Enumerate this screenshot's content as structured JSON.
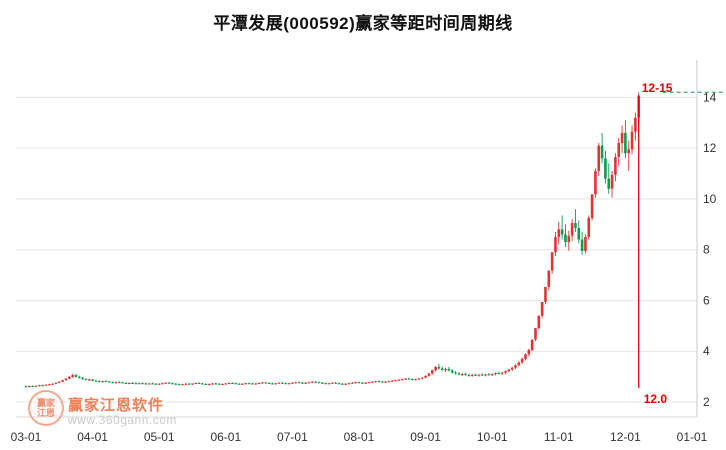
{
  "watermark": {
    "seal_top": "赢家",
    "seal_bottom": "江恩",
    "brand": "赢家江恩软件",
    "url": "www.360gann.com"
  },
  "chart_data": {
    "type": "candlestick",
    "title": "平潭发展(000592)赢家等距时间周期线",
    "xlabel": "",
    "ylabel": "",
    "grid": true,
    "legend": "none",
    "ylim": [
      2,
      15
    ],
    "y_ticks": [
      2,
      4,
      6,
      8,
      10,
      12,
      14
    ],
    "slots": 201,
    "x_ticks": [
      {
        "label": "03-01",
        "slot": 0
      },
      {
        "label": "04-01",
        "slot": 20
      },
      {
        "label": "05-01",
        "slot": 40
      },
      {
        "label": "06-01",
        "slot": 60
      },
      {
        "label": "07-01",
        "slot": 80
      },
      {
        "label": "08-01",
        "slot": 100
      },
      {
        "label": "09-01",
        "slot": 120
      },
      {
        "label": "10-01",
        "slot": 140
      },
      {
        "label": "11-01",
        "slot": 160
      },
      {
        "label": "12-01",
        "slot": 180
      },
      {
        "label": "01-01",
        "slot": 200
      }
    ],
    "up_color": "#e23333",
    "down_color": "#0a9b4e",
    "grid_color": "#e6e6e6",
    "axis_text_color": "#333333",
    "cycle_line": {
      "slot": 184,
      "date_label": "12-15",
      "price_label": "12.0",
      "color": "#e60000",
      "level_price": 14.2,
      "level_color": "#0a9b4e"
    },
    "candles": [
      [
        2.62,
        2.65,
        2.58,
        2.6
      ],
      [
        2.6,
        2.64,
        2.57,
        2.63
      ],
      [
        2.63,
        2.66,
        2.6,
        2.61
      ],
      [
        2.61,
        2.65,
        2.59,
        2.64
      ],
      [
        2.64,
        2.68,
        2.62,
        2.66
      ],
      [
        2.66,
        2.69,
        2.63,
        2.65
      ],
      [
        2.65,
        2.7,
        2.64,
        2.68
      ],
      [
        2.68,
        2.72,
        2.65,
        2.7
      ],
      [
        2.7,
        2.74,
        2.67,
        2.72
      ],
      [
        2.72,
        2.78,
        2.7,
        2.76
      ],
      [
        2.76,
        2.82,
        2.74,
        2.8
      ],
      [
        2.8,
        2.88,
        2.78,
        2.86
      ],
      [
        2.86,
        2.95,
        2.84,
        2.92
      ],
      [
        2.92,
        3.02,
        2.9,
        2.99
      ],
      [
        2.99,
        3.1,
        2.95,
        3.06
      ],
      [
        3.06,
        3.12,
        2.96,
        2.99
      ],
      [
        2.99,
        3.04,
        2.92,
        2.95
      ],
      [
        2.95,
        2.99,
        2.88,
        2.9
      ],
      [
        2.9,
        2.94,
        2.85,
        2.87
      ],
      [
        2.87,
        2.92,
        2.83,
        2.89
      ],
      [
        2.89,
        2.91,
        2.82,
        2.84
      ],
      [
        2.84,
        2.88,
        2.8,
        2.82
      ],
      [
        2.82,
        2.85,
        2.78,
        2.8
      ],
      [
        2.8,
        2.84,
        2.77,
        2.82
      ],
      [
        2.82,
        2.86,
        2.79,
        2.81
      ],
      [
        2.81,
        2.83,
        2.76,
        2.78
      ],
      [
        2.78,
        2.81,
        2.74,
        2.76
      ],
      [
        2.76,
        2.8,
        2.73,
        2.78
      ],
      [
        2.78,
        2.82,
        2.75,
        2.77
      ],
      [
        2.77,
        2.8,
        2.73,
        2.75
      ],
      [
        2.75,
        2.78,
        2.71,
        2.73
      ],
      [
        2.73,
        2.77,
        2.7,
        2.75
      ],
      [
        2.75,
        2.79,
        2.72,
        2.74
      ],
      [
        2.74,
        2.77,
        2.7,
        2.72
      ],
      [
        2.72,
        2.76,
        2.69,
        2.74
      ],
      [
        2.74,
        2.78,
        2.71,
        2.73
      ],
      [
        2.73,
        2.76,
        2.69,
        2.71
      ],
      [
        2.71,
        2.75,
        2.68,
        2.73
      ],
      [
        2.73,
        2.77,
        2.7,
        2.72
      ],
      [
        2.72,
        2.75,
        2.68,
        2.7
      ],
      [
        2.7,
        2.74,
        2.67,
        2.72
      ],
      [
        2.72,
        2.76,
        2.69,
        2.74
      ],
      [
        2.74,
        2.78,
        2.71,
        2.76
      ],
      [
        2.76,
        2.79,
        2.72,
        2.74
      ],
      [
        2.74,
        2.77,
        2.7,
        2.72
      ],
      [
        2.72,
        2.75,
        2.68,
        2.7
      ],
      [
        2.7,
        2.73,
        2.66,
        2.68
      ],
      [
        2.68,
        2.72,
        2.65,
        2.7
      ],
      [
        2.7,
        2.74,
        2.67,
        2.72
      ],
      [
        2.72,
        2.75,
        2.68,
        2.7
      ],
      [
        2.7,
        2.74,
        2.67,
        2.73
      ],
      [
        2.73,
        2.77,
        2.7,
        2.75
      ],
      [
        2.75,
        2.78,
        2.71,
        2.73
      ],
      [
        2.73,
        2.76,
        2.69,
        2.71
      ],
      [
        2.71,
        2.74,
        2.67,
        2.69
      ],
      [
        2.69,
        2.73,
        2.66,
        2.71
      ],
      [
        2.71,
        2.75,
        2.68,
        2.73
      ],
      [
        2.73,
        2.76,
        2.7,
        2.72
      ],
      [
        2.72,
        2.75,
        2.68,
        2.7
      ],
      [
        2.7,
        2.73,
        2.67,
        2.71
      ],
      [
        2.71,
        2.75,
        2.68,
        2.73
      ],
      [
        2.73,
        2.77,
        2.7,
        2.75
      ],
      [
        2.75,
        2.78,
        2.72,
        2.74
      ],
      [
        2.74,
        2.77,
        2.7,
        2.72
      ],
      [
        2.72,
        2.75,
        2.68,
        2.7
      ],
      [
        2.7,
        2.74,
        2.67,
        2.72
      ],
      [
        2.72,
        2.76,
        2.69,
        2.74
      ],
      [
        2.74,
        2.77,
        2.71,
        2.73
      ],
      [
        2.73,
        2.76,
        2.69,
        2.71
      ],
      [
        2.71,
        2.75,
        2.68,
        2.73
      ],
      [
        2.73,
        2.77,
        2.7,
        2.75
      ],
      [
        2.75,
        2.79,
        2.72,
        2.77
      ],
      [
        2.77,
        2.8,
        2.73,
        2.75
      ],
      [
        2.75,
        2.78,
        2.71,
        2.73
      ],
      [
        2.73,
        2.76,
        2.7,
        2.72
      ],
      [
        2.72,
        2.75,
        2.68,
        2.74
      ],
      [
        2.74,
        2.78,
        2.71,
        2.76
      ],
      [
        2.76,
        2.79,
        2.72,
        2.74
      ],
      [
        2.74,
        2.77,
        2.7,
        2.72
      ],
      [
        2.72,
        2.76,
        2.69,
        2.74
      ],
      [
        2.74,
        2.78,
        2.71,
        2.76
      ],
      [
        2.76,
        2.8,
        2.73,
        2.78
      ],
      [
        2.78,
        2.81,
        2.74,
        2.76
      ],
      [
        2.76,
        2.79,
        2.72,
        2.74
      ],
      [
        2.74,
        2.78,
        2.71,
        2.76
      ],
      [
        2.76,
        2.8,
        2.73,
        2.78
      ],
      [
        2.78,
        2.82,
        2.75,
        2.8
      ],
      [
        2.8,
        2.83,
        2.76,
        2.78
      ],
      [
        2.78,
        2.81,
        2.74,
        2.76
      ],
      [
        2.76,
        2.79,
        2.72,
        2.74
      ],
      [
        2.74,
        2.77,
        2.7,
        2.72
      ],
      [
        2.72,
        2.76,
        2.69,
        2.74
      ],
      [
        2.74,
        2.78,
        2.71,
        2.76
      ],
      [
        2.76,
        2.79,
        2.72,
        2.74
      ],
      [
        2.74,
        2.77,
        2.7,
        2.72
      ],
      [
        2.72,
        2.75,
        2.68,
        2.7
      ],
      [
        2.7,
        2.74,
        2.67,
        2.72
      ],
      [
        2.72,
        2.76,
        2.69,
        2.74
      ],
      [
        2.74,
        2.78,
        2.71,
        2.76
      ],
      [
        2.76,
        2.8,
        2.73,
        2.78
      ],
      [
        2.78,
        2.81,
        2.74,
        2.76
      ],
      [
        2.76,
        2.79,
        2.72,
        2.74
      ],
      [
        2.74,
        2.78,
        2.71,
        2.76
      ],
      [
        2.76,
        2.8,
        2.73,
        2.78
      ],
      [
        2.78,
        2.82,
        2.75,
        2.8
      ],
      [
        2.8,
        2.84,
        2.77,
        2.82
      ],
      [
        2.82,
        2.85,
        2.78,
        2.8
      ],
      [
        2.8,
        2.83,
        2.76,
        2.78
      ],
      [
        2.78,
        2.82,
        2.75,
        2.8
      ],
      [
        2.8,
        2.84,
        2.77,
        2.82
      ],
      [
        2.82,
        2.86,
        2.79,
        2.84
      ],
      [
        2.84,
        2.88,
        2.81,
        2.86
      ],
      [
        2.86,
        2.9,
        2.83,
        2.88
      ],
      [
        2.88,
        2.92,
        2.85,
        2.9
      ],
      [
        2.9,
        2.94,
        2.87,
        2.92
      ],
      [
        2.92,
        2.96,
        2.88,
        2.9
      ],
      [
        2.9,
        2.93,
        2.86,
        2.88
      ],
      [
        2.88,
        2.92,
        2.85,
        2.9
      ],
      [
        2.9,
        2.95,
        2.87,
        2.93
      ],
      [
        2.93,
        2.98,
        2.9,
        2.96
      ],
      [
        2.96,
        3.05,
        2.94,
        3.03
      ],
      [
        3.03,
        3.15,
        3.0,
        3.12
      ],
      [
        3.12,
        3.28,
        3.08,
        3.25
      ],
      [
        3.25,
        3.42,
        3.2,
        3.38
      ],
      [
        3.38,
        3.5,
        3.28,
        3.32
      ],
      [
        3.32,
        3.4,
        3.22,
        3.26
      ],
      [
        3.26,
        3.35,
        3.18,
        3.3
      ],
      [
        3.3,
        3.38,
        3.2,
        3.24
      ],
      [
        3.24,
        3.3,
        3.12,
        3.16
      ],
      [
        3.16,
        3.22,
        3.08,
        3.12
      ],
      [
        3.12,
        3.18,
        3.05,
        3.08
      ],
      [
        3.08,
        3.14,
        3.02,
        3.1
      ],
      [
        3.1,
        3.16,
        3.04,
        3.06
      ],
      [
        3.06,
        3.12,
        3.0,
        3.04
      ],
      [
        3.04,
        3.1,
        2.99,
        3.07
      ],
      [
        3.07,
        3.12,
        3.02,
        3.05
      ],
      [
        3.05,
        3.1,
        3.0,
        3.08
      ],
      [
        3.08,
        3.13,
        3.03,
        3.06
      ],
      [
        3.06,
        3.11,
        3.01,
        3.09
      ],
      [
        3.09,
        3.14,
        3.04,
        3.07
      ],
      [
        3.07,
        3.12,
        3.02,
        3.1
      ],
      [
        3.1,
        3.16,
        3.05,
        3.14
      ],
      [
        3.14,
        3.2,
        3.08,
        3.12
      ],
      [
        3.12,
        3.18,
        3.06,
        3.16
      ],
      [
        3.16,
        3.24,
        3.1,
        3.22
      ],
      [
        3.22,
        3.3,
        3.16,
        3.28
      ],
      [
        3.28,
        3.38,
        3.22,
        3.35
      ],
      [
        3.35,
        3.48,
        3.3,
        3.45
      ],
      [
        3.45,
        3.6,
        3.4,
        3.56
      ],
      [
        3.56,
        3.75,
        3.5,
        3.7
      ],
      [
        3.7,
        3.92,
        3.64,
        3.88
      ],
      [
        3.88,
        4.1,
        3.8,
        4.05
      ],
      [
        4.05,
        4.46,
        4.0,
        4.46
      ],
      [
        4.46,
        4.91,
        4.4,
        4.91
      ],
      [
        4.91,
        5.4,
        4.85,
        5.4
      ],
      [
        5.4,
        5.94,
        5.3,
        5.94
      ],
      [
        5.94,
        6.53,
        5.85,
        6.53
      ],
      [
        6.53,
        7.18,
        6.4,
        7.18
      ],
      [
        7.18,
        7.9,
        7.05,
        7.9
      ],
      [
        7.9,
        8.69,
        7.75,
        8.5
      ],
      [
        8.5,
        9.1,
        8.2,
        8.8
      ],
      [
        8.8,
        9.35,
        8.4,
        8.6
      ],
      [
        8.6,
        9.0,
        8.1,
        8.3
      ],
      [
        8.3,
        8.75,
        7.95,
        8.55
      ],
      [
        8.55,
        9.2,
        8.35,
        9.05
      ],
      [
        9.05,
        9.6,
        8.7,
        8.85
      ],
      [
        8.85,
        9.15,
        8.25,
        8.4
      ],
      [
        8.4,
        8.7,
        7.8,
        7.95
      ],
      [
        7.95,
        8.6,
        7.85,
        8.5
      ],
      [
        8.5,
        9.35,
        8.4,
        9.25
      ],
      [
        9.25,
        10.18,
        9.15,
        10.18
      ],
      [
        10.18,
        11.2,
        10.05,
        11.1
      ],
      [
        11.1,
        12.21,
        10.9,
        12.1
      ],
      [
        12.1,
        12.6,
        11.4,
        11.6
      ],
      [
        11.6,
        11.9,
        10.6,
        10.8
      ],
      [
        10.8,
        11.4,
        10.2,
        10.4
      ],
      [
        10.4,
        11.1,
        10.05,
        10.95
      ],
      [
        10.95,
        11.8,
        10.7,
        11.65
      ],
      [
        11.65,
        12.4,
        11.3,
        12.2
      ],
      [
        12.2,
        12.9,
        11.8,
        12.6
      ],
      [
        12.6,
        13.1,
        11.6,
        11.8
      ],
      [
        11.8,
        12.3,
        11.1,
        11.95
      ],
      [
        11.95,
        12.9,
        11.75,
        12.65
      ],
      [
        12.65,
        13.4,
        12.3,
        13.2
      ],
      [
        13.2,
        14.2,
        12.95,
        14.05
      ]
    ]
  }
}
